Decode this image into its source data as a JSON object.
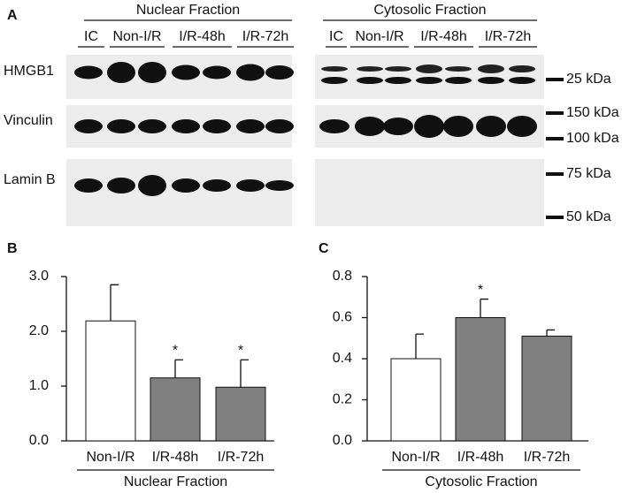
{
  "blot": {
    "panel": "A",
    "groups": [
      {
        "title": "Nuclear Fraction",
        "lanes": [
          "IC",
          "Non-I/R",
          "I/R-48h",
          "I/R-72h"
        ]
      },
      {
        "title": "Cytosolic Fraction",
        "lanes": [
          "IC",
          "Non-I/R",
          "I/R-48h",
          "I/R-72h"
        ]
      }
    ],
    "rows": [
      "HMGB1",
      "Vinculin",
      "Lamin B"
    ],
    "markers": [
      "25 kDa",
      "150 kDa",
      "100 kDa",
      "75 kDa",
      "50 kDa"
    ]
  },
  "chart_data": [
    {
      "type": "bar",
      "panel": "B",
      "x_title": "Nuclear Fraction",
      "categories": [
        "Non-I/R",
        "I/R-48h",
        "I/R-72h"
      ],
      "values": [
        2.19,
        1.15,
        0.98
      ],
      "errors": [
        0.66,
        0.33,
        0.5
      ],
      "colors": [
        "#ffffff",
        "#808080",
        "#808080"
      ],
      "annotations": [
        null,
        "*",
        "*"
      ],
      "ylim": [
        0,
        3
      ],
      "yticks": [
        {
          "value": 0,
          "label": "0.0"
        },
        {
          "value": 1,
          "label": "1.0"
        },
        {
          "value": 2,
          "label": "2.0"
        },
        {
          "value": 3,
          "label": "3.0"
        }
      ]
    },
    {
      "type": "bar",
      "panel": "C",
      "x_title": "Cytosolic Fraction",
      "categories": [
        "Non-I/R",
        "I/R-48h",
        "I/R-72h"
      ],
      "values": [
        0.4,
        0.6,
        0.51
      ],
      "errors": [
        0.12,
        0.09,
        0.03
      ],
      "colors": [
        "#ffffff",
        "#808080",
        "#808080"
      ],
      "annotations": [
        null,
        "*",
        null
      ],
      "ylim": [
        0,
        0.8
      ],
      "yticks": [
        {
          "value": 0,
          "label": "0.0"
        },
        {
          "value": 0.2,
          "label": "0.2"
        },
        {
          "value": 0.4,
          "label": "0.4"
        },
        {
          "value": 0.6,
          "label": "0.6"
        },
        {
          "value": 0.8,
          "label": "0.8"
        }
      ]
    }
  ]
}
